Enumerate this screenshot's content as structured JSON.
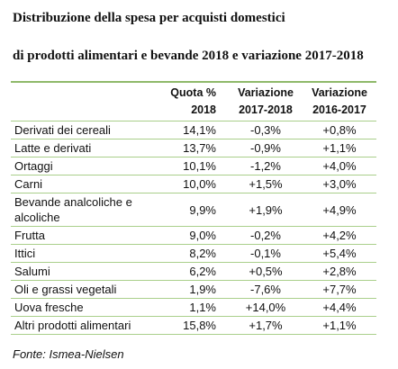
{
  "header": {
    "title_lines": [
      "Distribuzione della spesa per acquisti domestici",
      "di prodotti alimentari e bevande 2018 e variazione 2017-2018"
    ]
  },
  "table": {
    "columns": [
      "",
      "Quota % 2018",
      "Variazione 2017-2018",
      "Variazione 2016-2017"
    ],
    "rows": [
      [
        "Derivati dei cereali",
        "14,1%",
        "-0,3%",
        "+0,8%"
      ],
      [
        "Latte e derivati",
        "13,7%",
        "-0,9%",
        "+1,1%"
      ],
      [
        "Ortaggi",
        "10,1%",
        "-1,2%",
        "+4,0%"
      ],
      [
        "Carni",
        "10,0%",
        "+1,5%",
        "+3,0%"
      ],
      [
        "Bevande analcoliche e alcoliche",
        "9,9%",
        "+1,9%",
        "+4,9%"
      ],
      [
        "Frutta",
        "9,0%",
        "-0,2%",
        "+4,2%"
      ],
      [
        "Ittici",
        "8,2%",
        "-0,1%",
        "+5,4%"
      ],
      [
        "Salumi",
        "6,2%",
        "+0,5%",
        "+2,8%"
      ],
      [
        "Oli e grassi vegetali",
        "1,9%",
        "-7,6%",
        "+7,7%"
      ],
      [
        "Uova fresche",
        "1,1%",
        "+14,0%",
        "+4,4%"
      ],
      [
        "Altri prodotti alimentari",
        "15,8%",
        "+1,7%",
        "+1,1%"
      ]
    ]
  },
  "source": "Fonte: Ismea-Nielsen"
}
